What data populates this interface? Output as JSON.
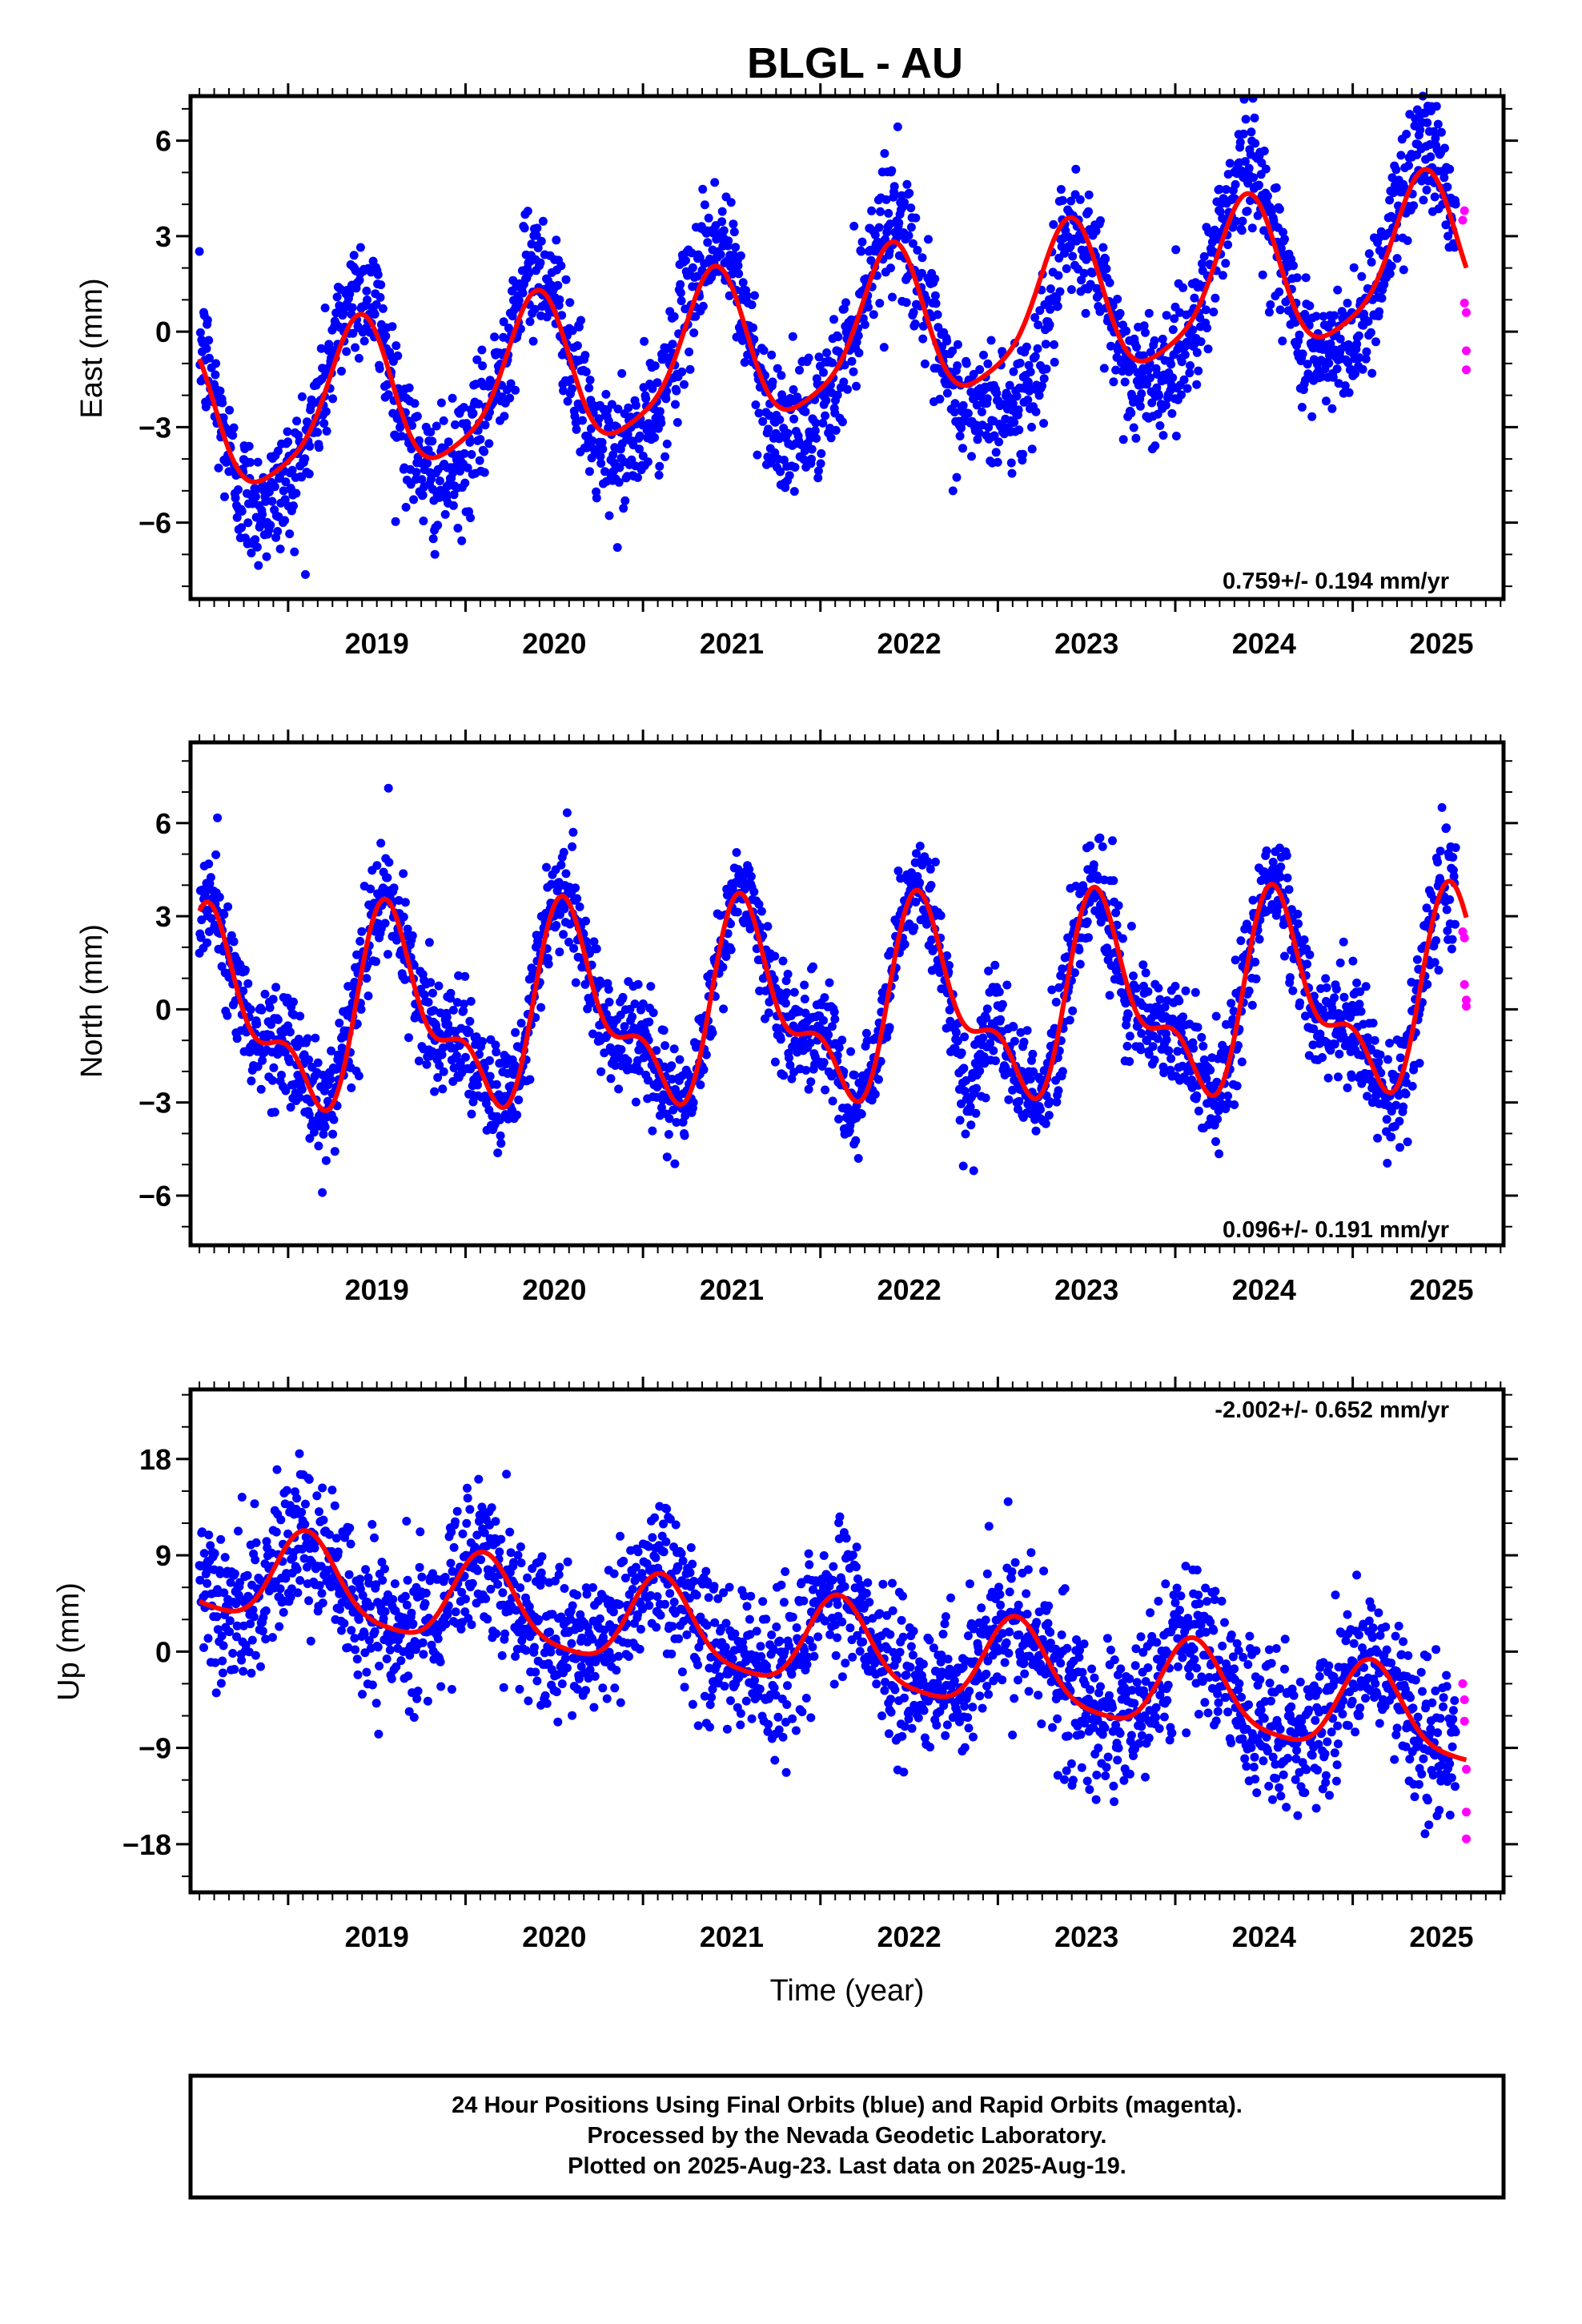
{
  "title": "BLGL - AU",
  "colors": {
    "final_orbits": "#0000ff",
    "rapid_orbits": "#ff00ff",
    "model_curve": "#ff0000",
    "frame": "#000000"
  },
  "caption": {
    "line1": "24 Hour Positions Using Final Orbits (blue) and Rapid Orbits (magenta).",
    "line2": "Processed by the Nevada Geodetic Laboratory.",
    "line3": "Plotted on 2025-Aug-23. Last data on 2025-Aug-19."
  },
  "chart_data": [
    {
      "type": "scatter",
      "panel": "east",
      "ylabel": "East (mm)",
      "xlabel": "",
      "rate_text": "0.759+/- 0.194 mm/yr",
      "xlim": [
        2018.45,
        2025.85
      ],
      "ylim": [
        -8.4,
        7.4
      ],
      "xticks": [
        2019,
        2020,
        2021,
        2022,
        2023,
        2024,
        2025
      ],
      "yticks": [
        -6,
        -3,
        0,
        3,
        6
      ],
      "ytick_labels": [
        "−6",
        "−3",
        "0",
        "3",
        "6"
      ],
      "grid": false,
      "series_model": {
        "start": 2018.5,
        "end": 2025.64,
        "trend_mm_per_yr": 0.759,
        "intercept_at_2022": -0.3,
        "annual": {
          "cos": -1.8,
          "sin": 1.5
        },
        "semiannual": {
          "cos": 0.3,
          "sin": -0.4
        }
      },
      "final_orbit_points": {
        "start": 2018.5,
        "end": 2025.58,
        "count": 2300,
        "scatter_mm": 1.0,
        "seasonal_extra": {
          "cos": -0.6,
          "sin": 0.5
        },
        "anomaly": {
          "from": 2022.9,
          "to": 2023.6,
          "offset_mm": -3.0
        }
      },
      "rapid_orbit_points": [
        {
          "x": 2025.62,
          "y": 3.5
        },
        {
          "x": 2025.63,
          "y": 3.8
        },
        {
          "x": 2025.63,
          "y": 0.9
        },
        {
          "x": 2025.64,
          "y": 0.6
        },
        {
          "x": 2025.64,
          "y": -0.6
        },
        {
          "x": 2025.64,
          "y": -1.2
        }
      ]
    },
    {
      "type": "scatter",
      "panel": "north",
      "ylabel": "North (mm)",
      "xlabel": "",
      "rate_text": "0.096+/- 0.191 mm/yr",
      "xlim": [
        2018.45,
        2025.85
      ],
      "ylim": [
        -7.6,
        8.6
      ],
      "xticks": [
        2019,
        2020,
        2021,
        2022,
        2023,
        2024,
        2025
      ],
      "yticks": [
        -6,
        -3,
        0,
        3,
        6
      ],
      "ytick_labels": [
        "−6",
        "−3",
        "0",
        "3",
        "6"
      ],
      "grid": false,
      "series_model": {
        "start": 2018.5,
        "end": 2025.64,
        "trend_mm_per_yr": 0.096,
        "intercept_at_2022": 0.0,
        "annual": {
          "cos": -2.2,
          "sin": -1.5
        },
        "semiannual": {
          "cos": 1.3,
          "sin": 0.3
        }
      },
      "final_orbit_points": {
        "start": 2018.5,
        "end": 2025.58,
        "count": 2300,
        "scatter_mm": 0.9,
        "seasonal_extra": {
          "cos": 0,
          "sin": 0
        },
        "anomaly": {
          "from": 2022.7,
          "to": 2022.95,
          "offset_mm": -2.5
        }
      },
      "rapid_orbit_points": [
        {
          "x": 2025.62,
          "y": 2.5
        },
        {
          "x": 2025.63,
          "y": 2.3
        },
        {
          "x": 2025.63,
          "y": 0.8
        },
        {
          "x": 2025.64,
          "y": 0.3
        },
        {
          "x": 2025.64,
          "y": 0.1
        }
      ]
    },
    {
      "type": "scatter",
      "panel": "up",
      "ylabel": "Up (mm)",
      "xlabel": "Time (year)",
      "rate_text": "-2.002+/- 0.652 mm/yr",
      "xlim": [
        2018.45,
        2025.85
      ],
      "ylim": [
        -22.5,
        24.5
      ],
      "xticks": [
        2019,
        2020,
        2021,
        2022,
        2023,
        2024,
        2025
      ],
      "yticks": [
        -18,
        -9,
        0,
        9,
        18
      ],
      "ytick_labels": [
        "−18",
        "−9",
        "0",
        "9",
        "18"
      ],
      "grid": false,
      "series_model": {
        "start": 2018.5,
        "end": 2025.64,
        "trend_mm_per_yr": -2.002,
        "intercept_at_2022": 0.5,
        "annual": {
          "cos": 3.2,
          "sin": 2.6
        },
        "semiannual": {
          "cos": 0.4,
          "sin": 0.8
        }
      },
      "final_orbit_points": {
        "start": 2018.5,
        "end": 2025.58,
        "count": 2300,
        "scatter_mm": 3.5,
        "seasonal_extra": {
          "cos": 0,
          "sin": 0
        },
        "anomaly": {
          "from": 0,
          "to": 0,
          "offset_mm": 0
        }
      },
      "rapid_orbit_points": [
        {
          "x": 2025.62,
          "y": -3.0
        },
        {
          "x": 2025.63,
          "y": -4.5
        },
        {
          "x": 2025.63,
          "y": -6.5
        },
        {
          "x": 2025.64,
          "y": -11.0
        },
        {
          "x": 2025.64,
          "y": -15.0
        },
        {
          "x": 2025.64,
          "y": -17.5
        }
      ]
    }
  ]
}
